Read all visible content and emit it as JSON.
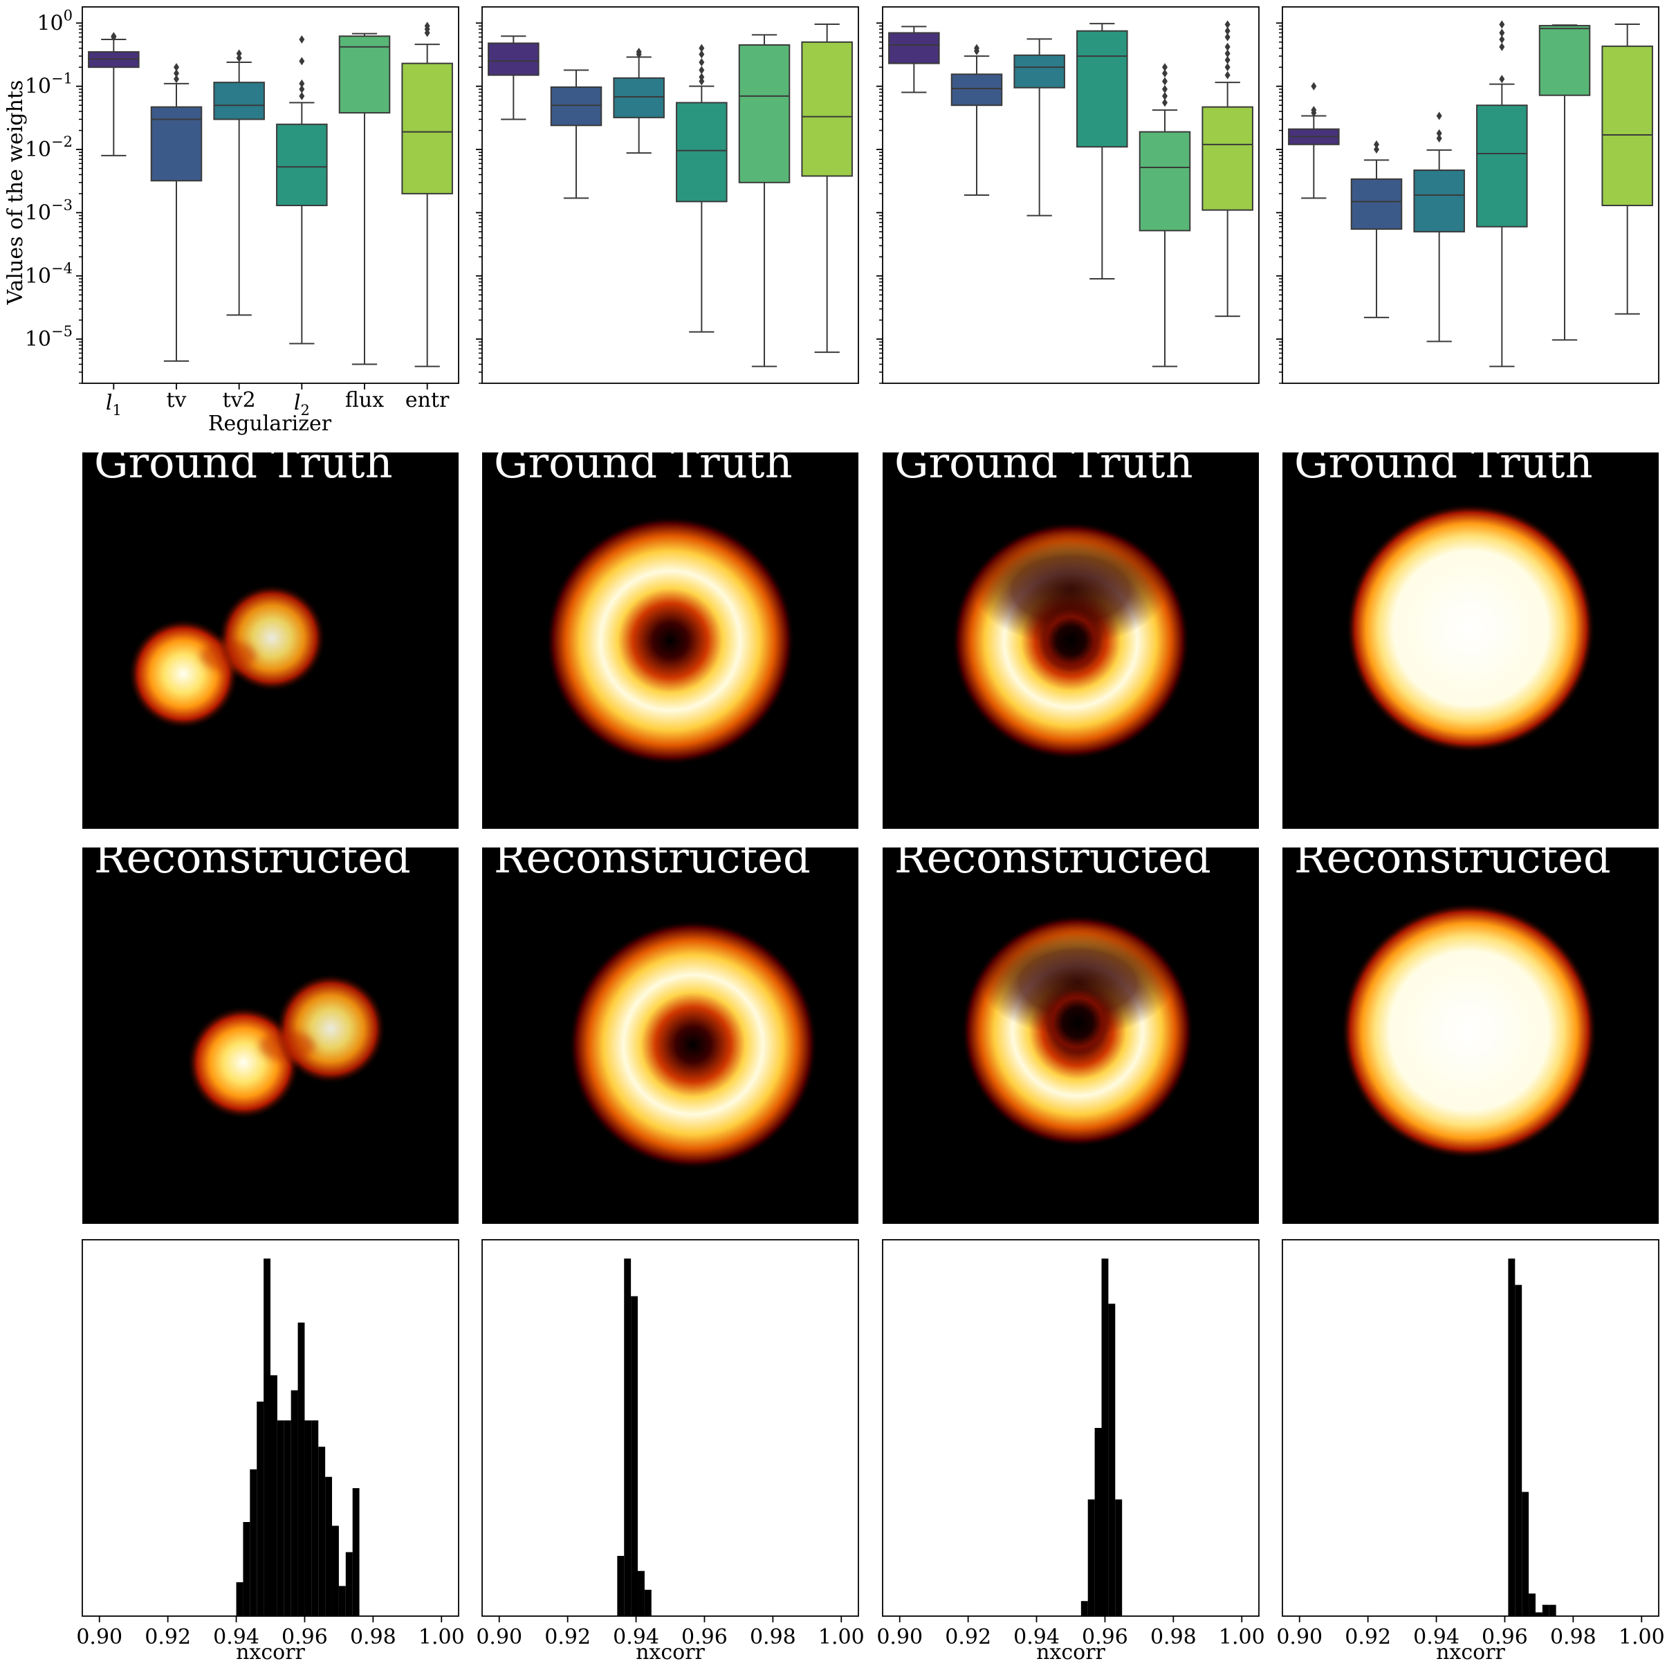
{
  "colors": {
    "l1": "#48327a",
    "tv": "#3c5a89",
    "tv2": "#2b7b8a",
    "l2": "#2a9680",
    "flux": "#58b776",
    "entr": "#9ccc48",
    "histogram": "#000000",
    "image_background": "#000000"
  },
  "box_row": {
    "ylabel": "Values of the weights",
    "xlabel": "Regularizer",
    "categories": [
      "l1",
      "tv",
      "tv2",
      "l2",
      "flux",
      "entr"
    ],
    "y_tick_labels": [
      {
        "base": "10",
        "exp": "0"
      },
      {
        "base": "10",
        "exp": "−1"
      },
      {
        "base": "10",
        "exp": "−2"
      },
      {
        "base": "10",
        "exp": "−3"
      },
      {
        "base": "10",
        "exp": "−4"
      },
      {
        "base": "10",
        "exp": "−5"
      }
    ]
  },
  "image_rows": {
    "top_title": "Ground Truth",
    "bottom_title": "Reconstructed",
    "shapes": [
      "double-source",
      "ring",
      "crescent",
      "disk"
    ]
  },
  "hist_row": {
    "xlabel": "nxcorr",
    "x_tick_labels": [
      "0.90",
      "0.92",
      "0.94",
      "0.96",
      "0.98",
      "1.00"
    ]
  },
  "chart_data": [
    {
      "type": "box",
      "scale": "log",
      "ylim": [
        2e-06,
        1.8
      ],
      "categories": [
        "l1",
        "tv",
        "tv2",
        "l2",
        "flux",
        "entr"
      ],
      "boxes": [
        {
          "q1": 0.2,
          "median": 0.27,
          "q3": 0.35,
          "whislo": 0.008,
          "whishi": 0.55,
          "fliers": [
            0.6,
            0.62
          ]
        },
        {
          "q1": 0.0032,
          "median": 0.03,
          "q3": 0.047,
          "whislo": 4.5e-06,
          "whishi": 0.11,
          "fliers": [
            0.13,
            0.16,
            0.2
          ]
        },
        {
          "q1": 0.03,
          "median": 0.05,
          "q3": 0.115,
          "whislo": 2.4e-05,
          "whishi": 0.24,
          "fliers": [
            0.28,
            0.33
          ]
        },
        {
          "q1": 0.0013,
          "median": 0.0053,
          "q3": 0.025,
          "whislo": 8.5e-06,
          "whishi": 0.055,
          "fliers": [
            0.07,
            0.09,
            0.11,
            0.25,
            0.55
          ]
        },
        {
          "q1": 0.038,
          "median": 0.42,
          "q3": 0.62,
          "whislo": 4e-06,
          "whishi": 0.68,
          "fliers": []
        },
        {
          "q1": 0.002,
          "median": 0.019,
          "q3": 0.23,
          "whislo": 3.7e-06,
          "whishi": 0.46,
          "fliers": [
            0.7,
            0.8,
            0.9
          ]
        }
      ]
    },
    {
      "type": "box",
      "scale": "log",
      "ylim": [
        2e-06,
        1.8
      ],
      "categories": [
        "l1",
        "tv",
        "tv2",
        "l2",
        "flux",
        "entr"
      ],
      "boxes": [
        {
          "q1": 0.15,
          "median": 0.25,
          "q3": 0.48,
          "whislo": 0.03,
          "whishi": 0.62,
          "fliers": []
        },
        {
          "q1": 0.024,
          "median": 0.05,
          "q3": 0.097,
          "whislo": 0.0017,
          "whishi": 0.18,
          "fliers": []
        },
        {
          "q1": 0.032,
          "median": 0.068,
          "q3": 0.135,
          "whislo": 0.0088,
          "whishi": 0.29,
          "fliers": [
            0.32,
            0.35
          ]
        },
        {
          "q1": 0.0015,
          "median": 0.0096,
          "q3": 0.055,
          "whislo": 1.3e-05,
          "whishi": 0.1,
          "fliers": [
            0.12,
            0.14,
            0.18,
            0.24,
            0.32,
            0.4
          ]
        },
        {
          "q1": 0.003,
          "median": 0.07,
          "q3": 0.45,
          "whislo": 3.7e-06,
          "whishi": 0.65,
          "fliers": []
        },
        {
          "q1": 0.0038,
          "median": 0.033,
          "q3": 0.5,
          "whislo": 6.2e-06,
          "whishi": 0.96,
          "fliers": []
        }
      ]
    },
    {
      "type": "box",
      "scale": "log",
      "ylim": [
        2e-06,
        1.8
      ],
      "categories": [
        "l1",
        "tv",
        "tv2",
        "l2",
        "flux",
        "entr"
      ],
      "boxes": [
        {
          "q1": 0.23,
          "median": 0.45,
          "q3": 0.7,
          "whislo": 0.08,
          "whishi": 0.88,
          "fliers": []
        },
        {
          "q1": 0.05,
          "median": 0.092,
          "q3": 0.155,
          "whislo": 0.0019,
          "whishi": 0.3,
          "fliers": [
            0.36,
            0.4
          ]
        },
        {
          "q1": 0.095,
          "median": 0.2,
          "q3": 0.31,
          "whislo": 0.0009,
          "whishi": 0.56,
          "fliers": []
        },
        {
          "q1": 0.011,
          "median": 0.3,
          "q3": 0.75,
          "whislo": 9e-05,
          "whishi": 0.98,
          "fliers": []
        },
        {
          "q1": 0.00052,
          "median": 0.0052,
          "q3": 0.019,
          "whislo": 3.7e-06,
          "whishi": 0.042,
          "fliers": [
            0.055,
            0.07,
            0.09,
            0.12,
            0.16,
            0.2
          ]
        },
        {
          "q1": 0.0011,
          "median": 0.012,
          "q3": 0.047,
          "whislo": 2.3e-05,
          "whishi": 0.115,
          "fliers": [
            0.15,
            0.2,
            0.26,
            0.33,
            0.42,
            0.6,
            0.75,
            0.95
          ]
        }
      ]
    },
    {
      "type": "box",
      "scale": "log",
      "ylim": [
        2e-06,
        1.8
      ],
      "categories": [
        "l1",
        "tv",
        "tv2",
        "l2",
        "flux",
        "entr"
      ],
      "boxes": [
        {
          "q1": 0.012,
          "median": 0.016,
          "q3": 0.021,
          "whislo": 0.0017,
          "whishi": 0.034,
          "fliers": [
            0.038,
            0.042,
            0.1
          ]
        },
        {
          "q1": 0.00055,
          "median": 0.0015,
          "q3": 0.0034,
          "whislo": 2.2e-05,
          "whishi": 0.0068,
          "fliers": [
            0.01,
            0.012
          ]
        },
        {
          "q1": 0.0005,
          "median": 0.0019,
          "q3": 0.0047,
          "whislo": 9.2e-06,
          "whishi": 0.0098,
          "fliers": [
            0.015,
            0.018,
            0.034
          ]
        },
        {
          "q1": 0.0006,
          "median": 0.0086,
          "q3": 0.05,
          "whislo": 3.7e-06,
          "whishi": 0.108,
          "fliers": [
            0.13,
            0.42,
            0.55,
            0.7,
            0.95
          ]
        },
        {
          "q1": 0.072,
          "median": 0.82,
          "q3": 0.91,
          "whislo": 9.7e-06,
          "whishi": 0.93,
          "fliers": []
        },
        {
          "q1": 0.0013,
          "median": 0.017,
          "q3": 0.43,
          "whislo": 2.5e-05,
          "whishi": 0.96,
          "fliers": []
        }
      ]
    },
    {
      "type": "histogram",
      "xlim": [
        0.895,
        1.005
      ],
      "xlabel": "nxcorr",
      "bin_width": 0.002,
      "bins": [
        {
          "x": 0.941,
          "h": 0.09
        },
        {
          "x": 0.943,
          "h": 0.25
        },
        {
          "x": 0.945,
          "h": 0.39
        },
        {
          "x": 0.947,
          "h": 0.57
        },
        {
          "x": 0.949,
          "h": 0.95
        },
        {
          "x": 0.951,
          "h": 0.64
        },
        {
          "x": 0.953,
          "h": 0.52
        },
        {
          "x": 0.955,
          "h": 0.52
        },
        {
          "x": 0.957,
          "h": 0.6
        },
        {
          "x": 0.959,
          "h": 0.78
        },
        {
          "x": 0.961,
          "h": 0.52
        },
        {
          "x": 0.963,
          "h": 0.52
        },
        {
          "x": 0.965,
          "h": 0.45
        },
        {
          "x": 0.967,
          "h": 0.37
        },
        {
          "x": 0.969,
          "h": 0.24
        },
        {
          "x": 0.971,
          "h": 0.08
        },
        {
          "x": 0.973,
          "h": 0.17
        },
        {
          "x": 0.975,
          "h": 0.34
        }
      ]
    },
    {
      "type": "histogram",
      "xlim": [
        0.895,
        1.005
      ],
      "xlabel": "nxcorr",
      "bin_width": 0.002,
      "bins": [
        {
          "x": 0.9355,
          "h": 0.16
        },
        {
          "x": 0.9375,
          "h": 0.95
        },
        {
          "x": 0.9395,
          "h": 0.85
        },
        {
          "x": 0.9415,
          "h": 0.12
        },
        {
          "x": 0.9435,
          "h": 0.07
        }
      ]
    },
    {
      "type": "histogram",
      "xlim": [
        0.895,
        1.005
      ],
      "xlabel": "nxcorr",
      "bin_width": 0.002,
      "bins": [
        {
          "x": 0.954,
          "h": 0.04
        },
        {
          "x": 0.956,
          "h": 0.31
        },
        {
          "x": 0.958,
          "h": 0.5
        },
        {
          "x": 0.96,
          "h": 0.95
        },
        {
          "x": 0.962,
          "h": 0.83
        },
        {
          "x": 0.964,
          "h": 0.31
        }
      ]
    },
    {
      "type": "histogram",
      "xlim": [
        0.895,
        1.005
      ],
      "xlabel": "nxcorr",
      "bin_width": 0.002,
      "bins": [
        {
          "x": 0.962,
          "h": 0.95
        },
        {
          "x": 0.964,
          "h": 0.88
        },
        {
          "x": 0.966,
          "h": 0.33
        },
        {
          "x": 0.968,
          "h": 0.06
        },
        {
          "x": 0.97,
          "h": 0.01
        },
        {
          "x": 0.972,
          "h": 0.03
        },
        {
          "x": 0.974,
          "h": 0.03
        }
      ]
    }
  ]
}
